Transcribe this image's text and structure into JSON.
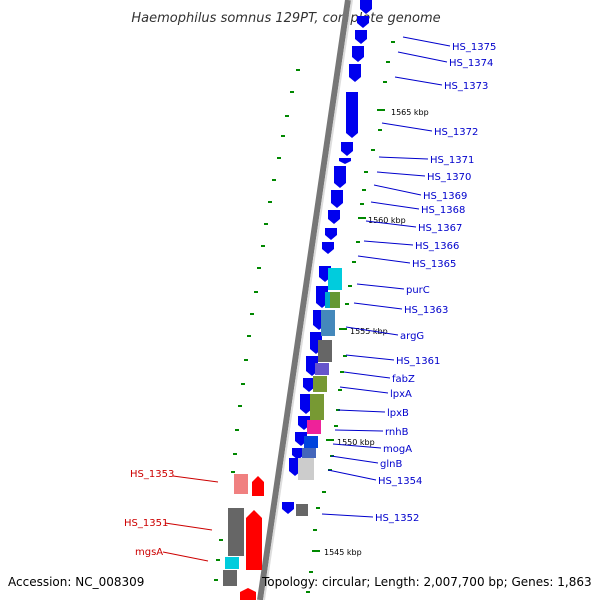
{
  "title": "Haemophilus somnus 129PT, complete genome",
  "footer": {
    "accession": "Accession: NC_008309",
    "topology": "Topology: circular; Length: 2,007,700 bp; Genes: 1,863"
  },
  "colors": {
    "forward_gene": "#0000ee",
    "reverse_gene": "#ff0000",
    "forward_label": "#0000cc",
    "reverse_label": "#cc0000",
    "backbone": "#777777",
    "backbone_highlight": "#dddddd",
    "tick": "#008800"
  },
  "kbp_labels": [
    "1565 kbp",
    "1560 kbp",
    "1555 kbp",
    "1550 kbp",
    "1545 kbp"
  ],
  "forward_labels": [
    "HS_1375",
    "HS_1374",
    "HS_1373",
    "HS_1372",
    "HS_1371",
    "HS_1370",
    "HS_1369",
    "HS_1368",
    "HS_1367",
    "HS_1366",
    "HS_1365",
    "purC",
    "HS_1363",
    "argG",
    "HS_1361",
    "fabZ",
    "lpxA",
    "lpxB",
    "rnhB",
    "mogA",
    "glnB",
    "HS_1354",
    "HS_1352"
  ],
  "reverse_labels": [
    "HS_1353",
    "HS_1351",
    "mgsA"
  ]
}
